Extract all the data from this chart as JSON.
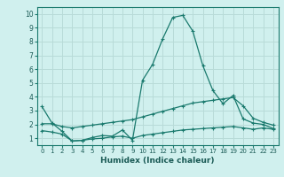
{
  "xlabel": "Humidex (Indice chaleur)",
  "xlim": [
    -0.5,
    23.5
  ],
  "ylim": [
    0.5,
    10.5
  ],
  "xticks": [
    0,
    1,
    2,
    3,
    4,
    5,
    6,
    7,
    8,
    9,
    10,
    11,
    12,
    13,
    14,
    15,
    16,
    17,
    18,
    19,
    20,
    21,
    22,
    23
  ],
  "yticks": [
    1,
    2,
    3,
    4,
    5,
    6,
    7,
    8,
    9,
    10
  ],
  "bg_color": "#d0f0ee",
  "grid_color": "#b8dbd8",
  "line_color": "#1a7a6e",
  "lines": [
    {
      "x": [
        0,
        1,
        2,
        3,
        4,
        5,
        6,
        7,
        8,
        9,
        10,
        11,
        12,
        13,
        14,
        15,
        16,
        17,
        18,
        19,
        20,
        21,
        22,
        23
      ],
      "y": [
        3.3,
        2.1,
        1.5,
        0.8,
        0.85,
        1.05,
        1.2,
        1.15,
        1.6,
        0.85,
        5.2,
        6.35,
        8.2,
        9.75,
        9.9,
        8.75,
        6.25,
        4.45,
        3.5,
        4.1,
        2.4,
        2.1,
        2.0,
        1.7
      ]
    },
    {
      "x": [
        0,
        1,
        2,
        3,
        4,
        5,
        6,
        7,
        8,
        9,
        10,
        11,
        12,
        13,
        14,
        15,
        16,
        17,
        18,
        19,
        20,
        21,
        22,
        23
      ],
      "y": [
        2.05,
        2.05,
        1.85,
        1.75,
        1.85,
        1.95,
        2.05,
        2.15,
        2.25,
        2.35,
        2.55,
        2.75,
        2.95,
        3.15,
        3.35,
        3.55,
        3.65,
        3.75,
        3.85,
        3.95,
        3.35,
        2.45,
        2.15,
        1.95
      ]
    },
    {
      "x": [
        0,
        1,
        2,
        3,
        4,
        5,
        6,
        7,
        8,
        9,
        10,
        11,
        12,
        13,
        14,
        15,
        16,
        17,
        18,
        19,
        20,
        21,
        22,
        23
      ],
      "y": [
        1.55,
        1.45,
        1.3,
        0.8,
        0.85,
        0.95,
        1.0,
        1.1,
        1.15,
        1.0,
        1.2,
        1.3,
        1.4,
        1.5,
        1.6,
        1.65,
        1.7,
        1.75,
        1.8,
        1.85,
        1.75,
        1.65,
        1.75,
        1.65
      ]
    }
  ]
}
